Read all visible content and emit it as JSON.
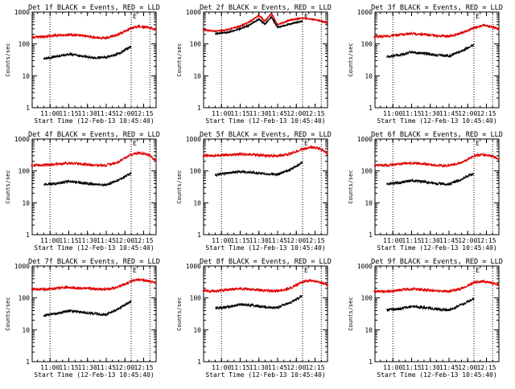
{
  "figure": {
    "background": "#ffffff"
  },
  "style": {
    "events_color": "#000000",
    "lld_color": "#e00000",
    "axis_color": "#000000"
  },
  "chart_data": [
    {
      "type": "line",
      "title": "Det 1f BLACK = Events, RED = LLD",
      "xlabel": "Start Time (12-Feb-13 10:45:40)",
      "ylabel": "Counts/sec",
      "y_scale": "log",
      "ylim": [
        1,
        1000
      ],
      "xlim": [
        "10:45:40",
        "12:25:00"
      ],
      "x_ticks": [
        "11:00",
        "11:15",
        "11:30",
        "11:45",
        "12:00",
        "12:15"
      ],
      "y_ticks": [
        "1",
        "10",
        "100",
        "1000"
      ],
      "vlines": [
        "11:00",
        "12:05",
        "12:20"
      ],
      "annotations": [
        {
          "text": "E",
          "x": "12:05"
        }
      ],
      "series": [
        {
          "name": "Events",
          "color": "#000000",
          "x": [
            "10:55",
            "11:05",
            "11:15",
            "11:25",
            "11:35",
            "11:45",
            "11:55",
            "12:05"
          ],
          "y": [
            35,
            40,
            48,
            42,
            37,
            38,
            50,
            85
          ]
        },
        {
          "name": "LLD",
          "color": "#e00000",
          "x": [
            "10:45",
            "10:55",
            "11:05",
            "11:15",
            "11:25",
            "11:35",
            "11:45",
            "11:55",
            "12:05",
            "12:12",
            "12:20",
            "12:25"
          ],
          "y": [
            160,
            170,
            185,
            195,
            185,
            160,
            155,
            200,
            310,
            360,
            320,
            280
          ]
        }
      ]
    },
    {
      "type": "line",
      "title": "Det 2f BLACK = Events, RED = LLD",
      "xlabel": "Start Time (12-Feb-13 10:45:40)",
      "ylabel": "Counts/sec",
      "y_scale": "log",
      "ylim": [
        1,
        1000
      ],
      "xlim": [
        "10:45:40",
        "12:25:00"
      ],
      "x_ticks": [
        "11:00",
        "11:15",
        "11:30",
        "11:45",
        "12:00",
        "12:15"
      ],
      "y_ticks": [
        "1",
        "10",
        "100",
        "1000"
      ],
      "vlines": [
        "11:00",
        "12:05",
        "12:20"
      ],
      "annotations": [
        {
          "text": "E",
          "x": "12:05"
        }
      ],
      "series": [
        {
          "name": "Events",
          "color": "#000000",
          "x": [
            "10:55",
            "11:05",
            "11:15",
            "11:22",
            "11:30",
            "11:35",
            "11:40",
            "11:45",
            "11:55",
            "12:05"
          ],
          "y": [
            210,
            230,
            300,
            380,
            600,
            420,
            700,
            330,
            420,
            520
          ]
        },
        {
          "name": "LLD",
          "color": "#e00000",
          "x": [
            "10:45",
            "10:55",
            "11:05",
            "11:15",
            "11:22",
            "11:30",
            "11:35",
            "11:40",
            "11:45",
            "11:55",
            "12:05",
            "12:15",
            "12:25"
          ],
          "y": [
            280,
            250,
            280,
            360,
            480,
            780,
            520,
            900,
            400,
            560,
            650,
            580,
            460
          ]
        }
      ]
    },
    {
      "type": "line",
      "title": "Det 3f BLACK = Events, RED = LLD",
      "xlabel": "Start Time (12-Feb-13 10:45:40)",
      "ylabel": "Counts/sec",
      "y_scale": "log",
      "ylim": [
        1,
        1000
      ],
      "xlim": [
        "10:45:40",
        "12:25:00"
      ],
      "x_ticks": [
        "11:00",
        "11:15",
        "11:30",
        "11:45",
        "12:00",
        "12:15"
      ],
      "y_ticks": [
        "1",
        "10",
        "100",
        "1000"
      ],
      "vlines": [
        "11:00",
        "12:05",
        "12:20"
      ],
      "annotations": [
        {
          "text": "E",
          "x": "12:05"
        }
      ],
      "series": [
        {
          "name": "Events",
          "color": "#000000",
          "x": [
            "10:55",
            "11:05",
            "11:15",
            "11:25",
            "11:35",
            "11:45",
            "11:55",
            "12:05"
          ],
          "y": [
            40,
            45,
            55,
            50,
            45,
            42,
            60,
            95
          ]
        },
        {
          "name": "LLD",
          "color": "#e00000",
          "x": [
            "10:45",
            "10:55",
            "11:05",
            "11:15",
            "11:25",
            "11:35",
            "11:45",
            "11:55",
            "12:05",
            "12:12",
            "12:20",
            "12:25"
          ],
          "y": [
            170,
            175,
            195,
            210,
            200,
            180,
            175,
            220,
            320,
            380,
            340,
            300
          ]
        }
      ]
    },
    {
      "type": "line",
      "title": "Det 4f BLACK = Events, RED = LLD",
      "xlabel": "Start Time (12-Feb-13 10:45:40)",
      "ylabel": "Counts/sec",
      "y_scale": "log",
      "ylim": [
        1,
        1000
      ],
      "xlim": [
        "10:45:40",
        "12:25:00"
      ],
      "x_ticks": [
        "11:00",
        "11:15",
        "11:30",
        "11:45",
        "12:00",
        "12:15"
      ],
      "y_ticks": [
        "1",
        "10",
        "100",
        "1000"
      ],
      "vlines": [
        "11:00",
        "12:05",
        "12:20"
      ],
      "annotations": [
        {
          "text": "E",
          "x": "12:05"
        }
      ],
      "series": [
        {
          "name": "Events",
          "color": "#000000",
          "x": [
            "10:55",
            "11:05",
            "11:15",
            "11:25",
            "11:35",
            "11:45",
            "11:55",
            "12:05"
          ],
          "y": [
            38,
            40,
            48,
            42,
            38,
            36,
            52,
            85
          ]
        },
        {
          "name": "LLD",
          "color": "#e00000",
          "x": [
            "10:45",
            "10:55",
            "11:05",
            "11:15",
            "11:25",
            "11:35",
            "11:45",
            "11:55",
            "12:05",
            "12:12",
            "12:20",
            "12:25"
          ],
          "y": [
            150,
            150,
            165,
            175,
            165,
            150,
            150,
            190,
            330,
            370,
            310,
            210
          ]
        }
      ]
    },
    {
      "type": "line",
      "title": "Det 5f BLACK = Events, RED = LLD",
      "xlabel": "Start Time (12-Feb-13 10:45:40)",
      "ylabel": "Counts/sec",
      "y_scale": "log",
      "ylim": [
        1,
        1000
      ],
      "xlim": [
        "10:45:40",
        "12:25:00"
      ],
      "x_ticks": [
        "11:00",
        "11:15",
        "11:30",
        "11:45",
        "12:00",
        "12:15"
      ],
      "y_ticks": [
        "1",
        "10",
        "100",
        "1000"
      ],
      "vlines": [
        "11:00",
        "12:05",
        "12:20"
      ],
      "annotations": [
        {
          "text": "E",
          "x": "12:05"
        }
      ],
      "series": [
        {
          "name": "Events",
          "color": "#000000",
          "x": [
            "10:55",
            "11:05",
            "11:15",
            "11:25",
            "11:35",
            "11:45",
            "11:55",
            "12:05"
          ],
          "y": [
            75,
            85,
            95,
            90,
            80,
            78,
            110,
            180
          ]
        },
        {
          "name": "LLD",
          "color": "#e00000",
          "x": [
            "10:45",
            "10:55",
            "11:05",
            "11:15",
            "11:25",
            "11:35",
            "11:45",
            "11:55",
            "12:05",
            "12:12",
            "12:20",
            "12:25"
          ],
          "y": [
            300,
            300,
            320,
            340,
            325,
            300,
            295,
            340,
            480,
            560,
            480,
            360
          ]
        }
      ]
    },
    {
      "type": "line",
      "title": "Det 6f BLACK = Events, RED = LLD",
      "xlabel": "Start Time (12-Feb-13 10:45:40)",
      "ylabel": "Counts/sec",
      "y_scale": "log",
      "ylim": [
        1,
        1000
      ],
      "xlim": [
        "10:45:40",
        "12:25:00"
      ],
      "x_ticks": [
        "11:00",
        "11:15",
        "11:30",
        "11:45",
        "12:00",
        "12:15"
      ],
      "y_ticks": [
        "1",
        "10",
        "100",
        "1000"
      ],
      "vlines": [
        "11:00",
        "12:05",
        "12:20"
      ],
      "annotations": [
        {
          "text": "E",
          "x": "12:05"
        }
      ],
      "series": [
        {
          "name": "Events",
          "color": "#000000",
          "x": [
            "10:55",
            "11:05",
            "11:15",
            "11:25",
            "11:35",
            "11:45",
            "11:55",
            "12:05"
          ],
          "y": [
            40,
            42,
            50,
            46,
            40,
            38,
            55,
            85
          ]
        },
        {
          "name": "LLD",
          "color": "#e00000",
          "x": [
            "10:45",
            "10:55",
            "11:05",
            "11:15",
            "11:25",
            "11:35",
            "11:45",
            "11:55",
            "12:05",
            "12:12",
            "12:20",
            "12:25"
          ],
          "y": [
            150,
            150,
            165,
            175,
            165,
            150,
            148,
            185,
            300,
            330,
            290,
            230
          ]
        }
      ]
    },
    {
      "type": "line",
      "title": "Det 7f BLACK = Events, RED = LLD",
      "xlabel": "Start Time (12-Feb-13 10:45:40)",
      "ylabel": "Counts/sec",
      "y_scale": "log",
      "ylim": [
        1,
        1000
      ],
      "xlim": [
        "10:45:40",
        "12:25:00"
      ],
      "x_ticks": [
        "11:00",
        "11:15",
        "11:30",
        "11:45",
        "12:00",
        "12:15"
      ],
      "y_ticks": [
        "1",
        "10",
        "100",
        "1000"
      ],
      "vlines": [
        "11:00",
        "12:05",
        "12:20"
      ],
      "annotations": [
        {
          "text": "E",
          "x": "12:05"
        }
      ],
      "series": [
        {
          "name": "Events",
          "color": "#000000",
          "x": [
            "10:55",
            "11:05",
            "11:15",
            "11:25",
            "11:35",
            "11:45",
            "11:55",
            "12:05"
          ],
          "y": [
            28,
            32,
            40,
            36,
            32,
            30,
            45,
            80
          ]
        },
        {
          "name": "LLD",
          "color": "#e00000",
          "x": [
            "10:45",
            "10:55",
            "11:05",
            "11:15",
            "11:25",
            "11:35",
            "11:45",
            "11:55",
            "12:05",
            "12:12",
            "12:20",
            "12:25"
          ],
          "y": [
            185,
            185,
            200,
            215,
            205,
            190,
            185,
            220,
            340,
            380,
            330,
            300
          ]
        }
      ]
    },
    {
      "type": "line",
      "title": "Det 8f BLACK = Events, RED = LLD",
      "xlabel": "Start Time (12-Feb-13 10:45:40)",
      "ylabel": "Counts/sec",
      "y_scale": "log",
      "ylim": [
        1,
        1000
      ],
      "xlim": [
        "10:45:40",
        "12:25:00"
      ],
      "x_ticks": [
        "11:00",
        "11:15",
        "11:30",
        "11:45",
        "12:00",
        "12:15"
      ],
      "y_ticks": [
        "1",
        "10",
        "100",
        "1000"
      ],
      "vlines": [
        "11:00",
        "12:05",
        "12:20"
      ],
      "annotations": [
        {
          "text": "E",
          "x": "12:05"
        }
      ],
      "series": [
        {
          "name": "Events",
          "color": "#000000",
          "x": [
            "10:55",
            "11:05",
            "11:15",
            "11:25",
            "11:35",
            "11:45",
            "11:55",
            "12:05"
          ],
          "y": [
            48,
            52,
            62,
            58,
            52,
            50,
            70,
            120
          ]
        },
        {
          "name": "LLD",
          "color": "#e00000",
          "x": [
            "10:45",
            "10:55",
            "11:05",
            "11:15",
            "11:25",
            "11:35",
            "11:45",
            "11:55",
            "12:05",
            "12:12",
            "12:20",
            "12:25"
          ],
          "y": [
            165,
            165,
            180,
            195,
            185,
            170,
            165,
            200,
            320,
            360,
            300,
            250
          ]
        }
      ]
    },
    {
      "type": "line",
      "title": "Det 9f BLACK = Events, RED = LLD",
      "xlabel": "Start Time (12-Feb-13 10:45:40)",
      "ylabel": "Counts/sec",
      "y_scale": "log",
      "ylim": [
        1,
        1000
      ],
      "xlim": [
        "10:45:40",
        "12:25:00"
      ],
      "x_ticks": [
        "11:00",
        "11:15",
        "11:30",
        "11:45",
        "12:00",
        "12:15"
      ],
      "y_ticks": [
        "1",
        "10",
        "100",
        "1000"
      ],
      "vlines": [
        "11:00",
        "12:05",
        "12:20"
      ],
      "annotations": [
        {
          "text": "E",
          "x": "12:05"
        }
      ],
      "series": [
        {
          "name": "Events",
          "color": "#000000",
          "x": [
            "10:55",
            "11:05",
            "11:15",
            "11:25",
            "11:35",
            "11:45",
            "11:55",
            "12:05"
          ],
          "y": [
            42,
            45,
            55,
            50,
            45,
            42,
            60,
            95
          ]
        },
        {
          "name": "LLD",
          "color": "#e00000",
          "x": [
            "10:45",
            "10:55",
            "11:05",
            "11:15",
            "11:25",
            "11:35",
            "11:45",
            "11:55",
            "12:05",
            "12:12",
            "12:20",
            "12:25"
          ],
          "y": [
            160,
            160,
            175,
            190,
            180,
            165,
            160,
            195,
            300,
            330,
            290,
            250
          ]
        }
      ]
    }
  ]
}
